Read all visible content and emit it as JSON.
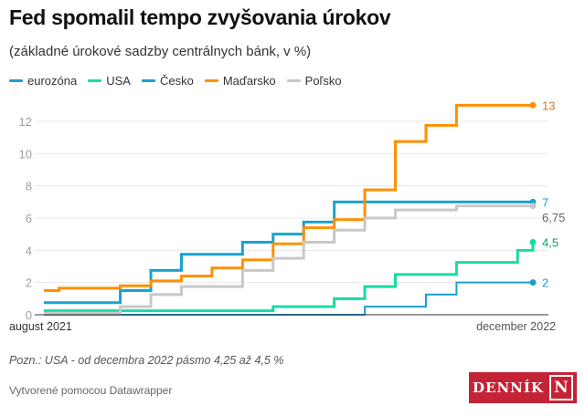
{
  "title": "Fed spomalil tempo zvyšovania úrokov",
  "subtitle": "(základné úrokové sadzby centrálnych bánk, v %)",
  "note": "Pozn.: USA - od decembra 2022 pásmo 4,25 až 4,5 %",
  "credit": "Vytvorené pomocou Datawrapper",
  "logo": {
    "text": "DENNÍK",
    "mark": "N",
    "color": "#c42336"
  },
  "chart_data": {
    "type": "line",
    "step": true,
    "title": "Fed spomalil tempo zvyšovania úrokov",
    "subtitle": "(základné úrokové sadzby centrálnych bánk, v %)",
    "xlabel": "",
    "ylabel": "",
    "x_range_months": [
      0,
      16
    ],
    "x_tick_labels": [
      {
        "m": 0,
        "label": "august 2021"
      },
      {
        "m": 16,
        "label": "december 2022"
      }
    ],
    "ylim": [
      0,
      13
    ],
    "yticks": [
      0,
      2,
      4,
      6,
      8,
      10,
      12
    ],
    "grid": true,
    "legend_position": "top-left",
    "series": [
      {
        "name": "eurozóna",
        "color": "#1d9dd0",
        "end_label": "2",
        "steps": [
          [
            0,
            0
          ],
          [
            10.5,
            0.5
          ],
          [
            12.5,
            1.25
          ],
          [
            13.5,
            2
          ],
          [
            16,
            2
          ]
        ]
      },
      {
        "name": "USA",
        "color": "#17dba6",
        "end_label": "4,5",
        "steps": [
          [
            0,
            0.25
          ],
          [
            7.5,
            0.5
          ],
          [
            9.5,
            1
          ],
          [
            10.5,
            1.75
          ],
          [
            11.5,
            2.5
          ],
          [
            13.5,
            3.25
          ],
          [
            15.5,
            4
          ],
          [
            16,
            4.5
          ]
        ]
      },
      {
        "name": "Česko",
        "color": "#1aa2cf",
        "end_label": "7",
        "steps": [
          [
            0,
            0.75
          ],
          [
            2.5,
            1.5
          ],
          [
            3.5,
            2.75
          ],
          [
            4.5,
            3.75
          ],
          [
            6.5,
            4.5
          ],
          [
            7.5,
            5
          ],
          [
            8.5,
            5.75
          ],
          [
            9.5,
            7
          ],
          [
            16,
            7
          ]
        ]
      },
      {
        "name": "Maďarsko",
        "color": "#ff8f00",
        "end_label": "13",
        "steps": [
          [
            0,
            1.5
          ],
          [
            0.5,
            1.65
          ],
          [
            2.5,
            1.8
          ],
          [
            3.5,
            2.1
          ],
          [
            4.5,
            2.4
          ],
          [
            5.5,
            2.9
          ],
          [
            6.5,
            3.4
          ],
          [
            7.5,
            4.4
          ],
          [
            8.5,
            5.4
          ],
          [
            9.5,
            5.9
          ],
          [
            10.5,
            7.75
          ],
          [
            11.5,
            10.75
          ],
          [
            12.5,
            11.75
          ],
          [
            13.5,
            13
          ],
          [
            16,
            13
          ]
        ]
      },
      {
        "name": "Poľsko",
        "color": "#c8c8c8",
        "end_label": "6,75",
        "steps": [
          [
            0,
            0.1
          ],
          [
            2.5,
            0.5
          ],
          [
            3.5,
            1.25
          ],
          [
            4.5,
            1.75
          ],
          [
            6.5,
            2.75
          ],
          [
            7.5,
            3.5
          ],
          [
            8.5,
            4.5
          ],
          [
            9.5,
            5.25
          ],
          [
            10.5,
            6
          ],
          [
            11.5,
            6.5
          ],
          [
            13.5,
            6.75
          ],
          [
            16,
            6.75
          ]
        ]
      }
    ]
  }
}
